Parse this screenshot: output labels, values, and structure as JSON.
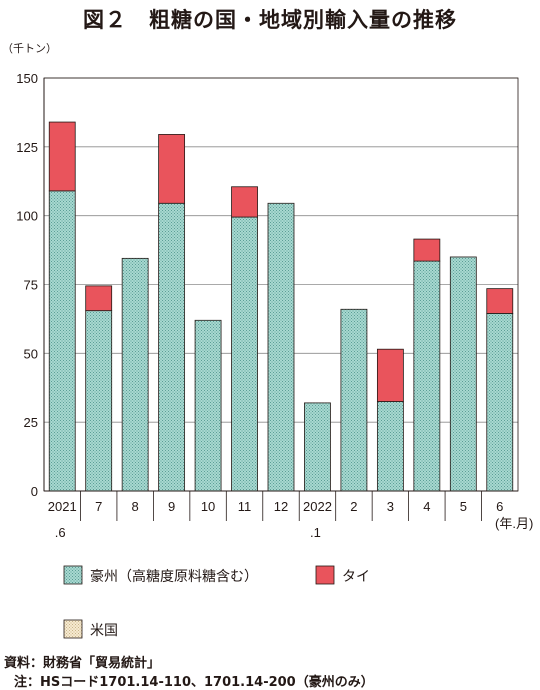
{
  "title": "図２　粗糖の国・地域別輸入量の推移",
  "source": "資料：財務省「貿易統計」",
  "note": "注：HSコード1701.14-110、1701.14-200（豪州のみ）",
  "chart_data": {
    "type": "bar",
    "stacked": true,
    "y_unit": "（千トン）",
    "x_unit": "(年.月)",
    "ylim": [
      0,
      150
    ],
    "yticks": [
      0,
      25,
      50,
      75,
      100,
      125,
      150
    ],
    "grid": true,
    "categories": [
      {
        "top": "2021",
        "bottom": ".6"
      },
      {
        "top": "7",
        "bottom": ""
      },
      {
        "top": "8",
        "bottom": ""
      },
      {
        "top": "9",
        "bottom": ""
      },
      {
        "top": "10",
        "bottom": ""
      },
      {
        "top": "11",
        "bottom": ""
      },
      {
        "top": "12",
        "bottom": ""
      },
      {
        "top": "2022",
        "bottom": ".1"
      },
      {
        "top": "2",
        "bottom": ""
      },
      {
        "top": "3",
        "bottom": ""
      },
      {
        "top": "4",
        "bottom": ""
      },
      {
        "top": "5",
        "bottom": ""
      },
      {
        "top": "6",
        "bottom": ""
      }
    ],
    "series": [
      {
        "name": "豪州（高糖度原料糖含む）",
        "color": "#a8d8d0",
        "pattern": "dots",
        "values": [
          109,
          65.5,
          84.5,
          104.5,
          62,
          99.5,
          104.5,
          32,
          66,
          32.5,
          83.5,
          85,
          64.5
        ]
      },
      {
        "name": "タイ",
        "color": "#e9545c",
        "pattern": "solid",
        "values": [
          25,
          9,
          0,
          25,
          0,
          11,
          0,
          0,
          0,
          19,
          8,
          0,
          9
        ]
      },
      {
        "name": "米国",
        "color": "#f5e6c8",
        "pattern": "dots",
        "values": [
          0,
          0,
          0,
          0,
          0,
          0,
          0,
          0,
          0,
          0,
          0,
          0,
          0
        ]
      }
    ],
    "legend_position": "bottom"
  }
}
